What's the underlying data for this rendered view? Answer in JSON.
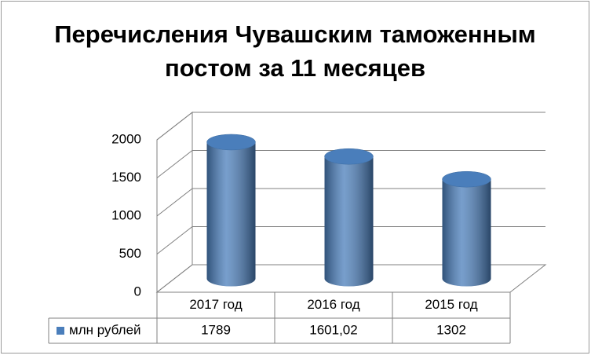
{
  "chart_data": {
    "type": "bar3d",
    "title": "Перечисления Чувашским таможенным постом за 11 месяцев",
    "categories": [
      "2017 год",
      "2016 год",
      "2015 год"
    ],
    "series": [
      {
        "name": "млн рублей",
        "color": "#4a7ebb",
        "values": [
          1789,
          1601.02,
          1302
        ],
        "value_labels": [
          "1789",
          "1601,02",
          "1302"
        ]
      }
    ],
    "ylim": [
      0,
      2000
    ],
    "yticks": [
      0,
      500,
      1000,
      1500,
      2000
    ],
    "grid": true,
    "data_table": true
  }
}
